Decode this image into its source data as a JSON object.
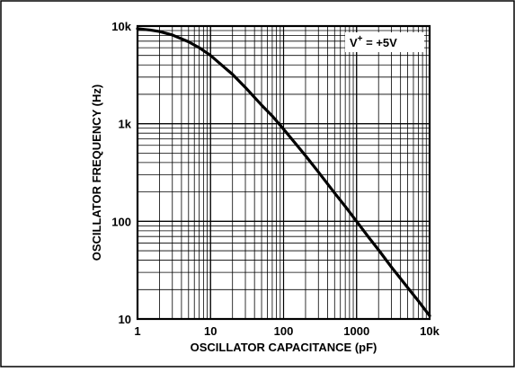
{
  "chart_data": {
    "type": "line",
    "xlabel": "OSCILLATOR CAPACITANCE (pF)",
    "ylabel": "OSCILLATOR FREQUENCY (Hz)",
    "x_scale": "log",
    "y_scale": "log",
    "xlim": [
      1,
      10000
    ],
    "ylim": [
      10,
      10000
    ],
    "x_ticks": [
      {
        "value": 1,
        "label": "1"
      },
      {
        "value": 10,
        "label": "10"
      },
      {
        "value": 100,
        "label": "100"
      },
      {
        "value": 1000,
        "label": "1000"
      },
      {
        "value": 10000,
        "label": "10k"
      }
    ],
    "y_ticks": [
      {
        "value": 10,
        "label": "10"
      },
      {
        "value": 100,
        "label": "100"
      },
      {
        "value": 1000,
        "label": "1k"
      },
      {
        "value": 10000,
        "label": "10k"
      }
    ],
    "grid": true,
    "annotation": {
      "text": "V",
      "superscript": "+",
      "suffix": " = +5V",
      "placement": "top-right"
    },
    "series": [
      {
        "x": [
          1,
          1.5,
          2,
          3,
          5,
          7,
          10,
          15,
          20,
          30,
          50,
          70,
          100,
          150,
          200,
          300,
          500,
          700,
          1000,
          1500,
          2000,
          3000,
          5000,
          7000,
          10000
        ],
        "values": [
          9400,
          9100,
          8800,
          8100,
          6900,
          6000,
          5000,
          3850,
          3200,
          2350,
          1550,
          1200,
          880,
          610,
          470,
          320,
          195,
          142,
          100,
          67,
          51,
          34,
          21,
          15.3,
          10.8
        ]
      }
    ]
  }
}
